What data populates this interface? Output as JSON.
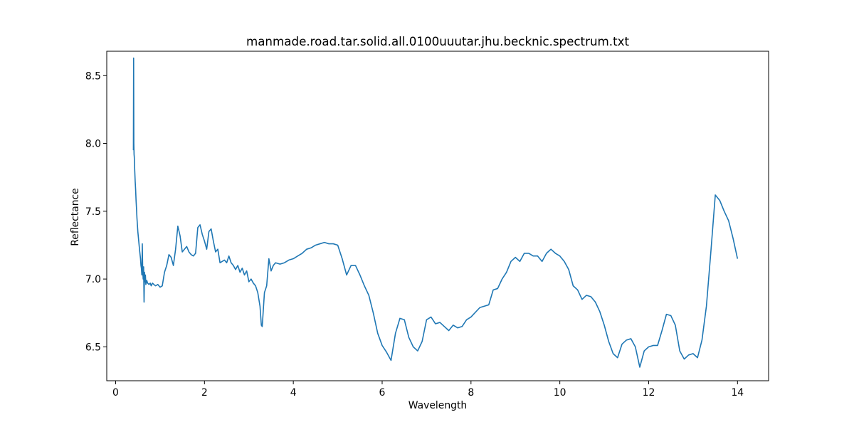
{
  "chart_data": {
    "type": "line",
    "title": "manmade.road.tar.solid.all.0100uuutar.jhu.becknic.spectrum.txt",
    "xlabel": "Wavelength",
    "ylabel": "Reflectance",
    "xlim": [
      -0.2,
      14.7
    ],
    "ylim": [
      6.25,
      8.68
    ],
    "xticks": [
      0,
      2,
      4,
      6,
      8,
      10,
      12,
      14
    ],
    "xtick_labels": [
      "0",
      "2",
      "4",
      "6",
      "8",
      "10",
      "12",
      "14"
    ],
    "yticks": [
      6.5,
      7.0,
      7.5,
      8.0,
      8.5
    ],
    "ytick_labels": [
      "6.5",
      "7.0",
      "7.5",
      "8.0",
      "8.5"
    ],
    "grid": false,
    "color": "#1f77b4",
    "series": [
      {
        "x": [
          0.4,
          0.405,
          0.41,
          0.415,
          0.42,
          0.43,
          0.44,
          0.45,
          0.46,
          0.47,
          0.48,
          0.49,
          0.5,
          0.52,
          0.54,
          0.56,
          0.57,
          0.58,
          0.59,
          0.6,
          0.61,
          0.62,
          0.63,
          0.64,
          0.65,
          0.66,
          0.67,
          0.68,
          0.7,
          0.72,
          0.75,
          0.78,
          0.8,
          0.83,
          0.86,
          0.9,
          0.95,
          1.0,
          1.05,
          1.1,
          1.15,
          1.2,
          1.25,
          1.3,
          1.35,
          1.4,
          1.45,
          1.5,
          1.55,
          1.6,
          1.65,
          1.7,
          1.75,
          1.8,
          1.85,
          1.9,
          1.95,
          2.0,
          2.05,
          2.1,
          2.15,
          2.2,
          2.25,
          2.3,
          2.35,
          2.4,
          2.45,
          2.5,
          2.55,
          2.6,
          2.65,
          2.7,
          2.75,
          2.8,
          2.85,
          2.9,
          2.95,
          3.0,
          3.05,
          3.1,
          3.15,
          3.2,
          3.25,
          3.28,
          3.3,
          3.35,
          3.4,
          3.45,
          3.5,
          3.55,
          3.6,
          3.7,
          3.8,
          3.9,
          4.0,
          4.1,
          4.2,
          4.3,
          4.4,
          4.5,
          4.6,
          4.7,
          4.8,
          4.9,
          5.0,
          5.1,
          5.2,
          5.3,
          5.4,
          5.5,
          5.6,
          5.7,
          5.8,
          5.9,
          6.0,
          6.1,
          6.2,
          6.3,
          6.4,
          6.5,
          6.6,
          6.7,
          6.8,
          6.9,
          7.0,
          7.1,
          7.2,
          7.3,
          7.4,
          7.5,
          7.6,
          7.7,
          7.8,
          7.9,
          8.0,
          8.2,
          8.3,
          8.4,
          8.5,
          8.6,
          8.7,
          8.8,
          8.9,
          9.0,
          9.1,
          9.2,
          9.3,
          9.4,
          9.5,
          9.6,
          9.7,
          9.8,
          9.9,
          10.0,
          10.1,
          10.2,
          10.3,
          10.4,
          10.5,
          10.6,
          10.7,
          10.8,
          10.9,
          11.0,
          11.1,
          11.2,
          11.3,
          11.4,
          11.5,
          11.6,
          11.7,
          11.8,
          11.9,
          12.0,
          12.1,
          12.2,
          12.3,
          12.4,
          12.5,
          12.6,
          12.7,
          12.8,
          12.9,
          13.0,
          13.1,
          13.2,
          13.3,
          13.4,
          13.5,
          13.6,
          13.7,
          13.8,
          13.9,
          14.0
        ],
        "y": [
          7.95,
          8.63,
          8.0,
          7.92,
          7.9,
          7.8,
          7.72,
          7.66,
          7.58,
          7.52,
          7.45,
          7.4,
          7.35,
          7.28,
          7.21,
          7.15,
          7.1,
          7.08,
          7.03,
          7.26,
          7.06,
          7.0,
          7.09,
          6.83,
          7.05,
          6.98,
          7.03,
          6.96,
          6.99,
          6.97,
          6.96,
          6.97,
          6.95,
          6.97,
          6.96,
          6.95,
          6.96,
          6.94,
          6.95,
          7.05,
          7.1,
          7.18,
          7.16,
          7.1,
          7.22,
          7.39,
          7.32,
          7.2,
          7.22,
          7.24,
          7.2,
          7.18,
          7.17,
          7.19,
          7.38,
          7.4,
          7.33,
          7.28,
          7.22,
          7.35,
          7.37,
          7.28,
          7.2,
          7.22,
          7.12,
          7.13,
          7.14,
          7.12,
          7.17,
          7.12,
          7.1,
          7.07,
          7.1,
          7.05,
          7.08,
          7.03,
          7.06,
          6.98,
          7.0,
          6.97,
          6.95,
          6.9,
          6.8,
          6.66,
          6.65,
          6.9,
          6.95,
          7.15,
          7.06,
          7.1,
          7.12,
          7.11,
          7.12,
          7.14,
          7.15,
          7.17,
          7.19,
          7.22,
          7.23,
          7.25,
          7.26,
          7.27,
          7.26,
          7.26,
          7.25,
          7.15,
          7.03,
          7.1,
          7.1,
          7.03,
          6.95,
          6.88,
          6.75,
          6.6,
          6.51,
          6.46,
          6.4,
          6.6,
          6.71,
          6.7,
          6.57,
          6.5,
          6.47,
          6.54,
          6.7,
          6.72,
          6.67,
          6.68,
          6.65,
          6.62,
          6.66,
          6.64,
          6.65,
          6.7,
          6.72,
          6.79,
          6.8,
          6.81,
          6.92,
          6.93,
          7.0,
          7.05,
          7.13,
          7.16,
          7.13,
          7.19,
          7.19,
          7.17,
          7.17,
          7.13,
          7.19,
          7.22,
          7.19,
          7.17,
          7.13,
          7.07,
          6.95,
          6.92,
          6.85,
          6.88,
          6.87,
          6.83,
          6.76,
          6.66,
          6.54,
          6.45,
          6.42,
          6.52,
          6.55,
          6.56,
          6.5,
          6.35,
          6.47,
          6.5,
          6.51,
          6.51,
          6.62,
          6.74,
          6.73,
          6.66,
          6.47,
          6.41,
          6.44,
          6.45,
          6.42,
          6.55,
          6.8,
          7.2,
          7.62,
          7.58,
          7.5,
          7.43,
          7.3,
          7.15
        ]
      }
    ]
  }
}
